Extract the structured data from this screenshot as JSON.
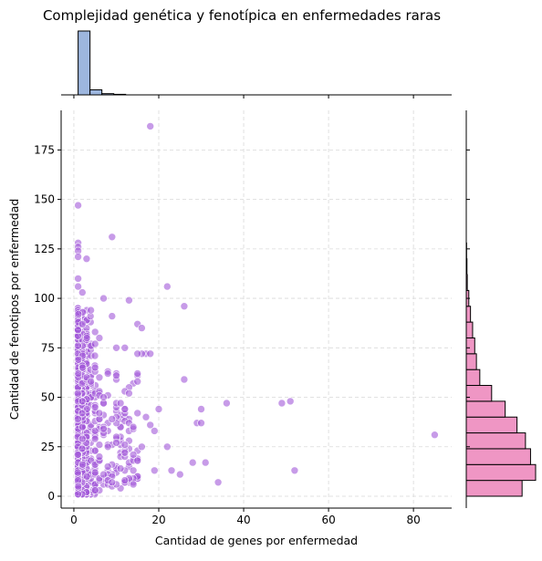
{
  "chart_data": {
    "type": "scatter",
    "title": "Complejidad genética y fenotípica en enfermedades raras",
    "xlabel": "Cantidad de genes por enfermedad",
    "ylabel": "Cantidad de fenotipos por enfermedad",
    "xlim": [
      -3,
      89
    ],
    "ylim": [
      -6,
      195
    ],
    "xticks": [
      0,
      20,
      40,
      60,
      80
    ],
    "yticks": [
      0,
      25,
      50,
      75,
      100,
      125,
      150,
      175
    ],
    "grid": true,
    "point_color": "#a259d9",
    "marginal_x_color": "#9db6de",
    "marginal_y_color": "#ef96c4",
    "outliers": [
      [
        18,
        187
      ],
      [
        1,
        147
      ],
      [
        9,
        131
      ],
      [
        1,
        128
      ],
      [
        1,
        126
      ],
      [
        1,
        124
      ],
      [
        1,
        121
      ],
      [
        3,
        120
      ],
      [
        22,
        106
      ],
      [
        1,
        110
      ],
      [
        1,
        106
      ],
      [
        2,
        103
      ],
      [
        7,
        100
      ],
      [
        13,
        99
      ],
      [
        9,
        91
      ],
      [
        26,
        96
      ],
      [
        15,
        87
      ],
      [
        16,
        85
      ],
      [
        10,
        75
      ],
      [
        12,
        75
      ],
      [
        17,
        72
      ],
      [
        18,
        72
      ],
      [
        16,
        72
      ],
      [
        15,
        72
      ],
      [
        26,
        59
      ],
      [
        36,
        47
      ],
      [
        30,
        44
      ],
      [
        20,
        44
      ],
      [
        29,
        37
      ],
      [
        30,
        37
      ],
      [
        49,
        47
      ],
      [
        51,
        48
      ],
      [
        85,
        31
      ],
      [
        52,
        13
      ],
      [
        34,
        7
      ],
      [
        22,
        25
      ],
      [
        28,
        17
      ],
      [
        31,
        17
      ],
      [
        23,
        13
      ],
      [
        19,
        13
      ],
      [
        25,
        11
      ],
      [
        14,
        6
      ],
      [
        8,
        15
      ],
      [
        14,
        35
      ],
      [
        12,
        44
      ],
      [
        18,
        36
      ],
      [
        17,
        40
      ],
      [
        13,
        52
      ],
      [
        11,
        47
      ],
      [
        9,
        39
      ],
      [
        10,
        27
      ],
      [
        12,
        22
      ],
      [
        15,
        18
      ],
      [
        16,
        25
      ],
      [
        19,
        33
      ],
      [
        8,
        62
      ],
      [
        7,
        50
      ],
      [
        6,
        42
      ],
      [
        5,
        77
      ],
      [
        5,
        65
      ],
      [
        4,
        58
      ],
      [
        5,
        29
      ],
      [
        6,
        20
      ],
      [
        7,
        11
      ],
      [
        9,
        7
      ],
      [
        12,
        8
      ],
      [
        4,
        94
      ],
      [
        6,
        80
      ]
    ],
    "marginal_x_bins": {
      "edges": [
        1,
        3.8,
        6.6,
        9.4,
        12.2
      ],
      "counts": [
        2400,
        190,
        45,
        20
      ]
    },
    "marginal_y_bins": {
      "edges": [
        0,
        8,
        16,
        24,
        32,
        40,
        48,
        56,
        64,
        72,
        80,
        88,
        96,
        104,
        112,
        120,
        128
      ],
      "counts": [
        660,
        820,
        760,
        700,
        600,
        460,
        300,
        160,
        120,
        100,
        75,
        50,
        30,
        12,
        8,
        4
      ]
    }
  }
}
